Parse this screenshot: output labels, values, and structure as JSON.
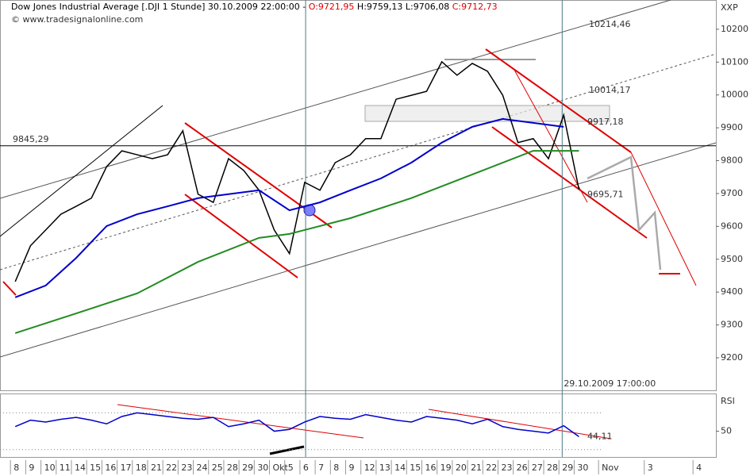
{
  "header": {
    "name": "Dow Jones Industrial Average [.DJI  1 Stunde] 30.10.2009 22:00:00 -",
    "open": "O:9721,95",
    "high_low": "H:9759,13 L:9706,08",
    "close": "C:9712,73",
    "source": "www.tradesignalonline.com",
    "axis_unit": "XXP"
  },
  "chart_data": [
    {
      "type": "line",
      "xlim": [
        -1,
        45.99
      ],
      "xticks": [
        {
          "value": 0,
          "label": "8"
        },
        {
          "value": 1,
          "label": "9"
        },
        {
          "value": 2,
          "label": "10"
        },
        {
          "value": 3,
          "label": "11"
        },
        {
          "value": 4,
          "label": "14"
        },
        {
          "value": 5,
          "label": "15"
        },
        {
          "value": 6,
          "label": "16"
        },
        {
          "value": 7,
          "label": "17"
        },
        {
          "value": 8,
          "label": "18"
        },
        {
          "value": 9,
          "label": "21"
        },
        {
          "value": 10,
          "label": "22"
        },
        {
          "value": 11,
          "label": "23"
        },
        {
          "value": 12,
          "label": "24"
        },
        {
          "value": 13,
          "label": "25"
        },
        {
          "value": 14,
          "label": "28"
        },
        {
          "value": 15,
          "label": "29"
        },
        {
          "value": 16,
          "label": "30"
        },
        {
          "value": 17,
          "label": "Okt"
        },
        {
          "value": 18,
          "label": "5"
        },
        {
          "value": 19,
          "label": "6"
        },
        {
          "value": 20,
          "label": "7"
        },
        {
          "value": 21,
          "label": "8"
        },
        {
          "value": 22,
          "label": "9"
        },
        {
          "value": 23,
          "label": "12"
        },
        {
          "value": 24,
          "label": "13"
        },
        {
          "value": 25,
          "label": "14"
        },
        {
          "value": 26,
          "label": "15"
        },
        {
          "value": 27,
          "label": "16"
        },
        {
          "value": 28,
          "label": "19"
        },
        {
          "value": 29,
          "label": "20"
        },
        {
          "value": 30,
          "label": "21"
        },
        {
          "value": 31,
          "label": "22"
        },
        {
          "value": 32,
          "label": "23"
        },
        {
          "value": 33,
          "label": "26"
        },
        {
          "value": 34,
          "label": "27"
        },
        {
          "value": 35,
          "label": "28"
        },
        {
          "value": 36,
          "label": "29"
        },
        {
          "value": 37,
          "label": "30"
        },
        {
          "value": 38.6,
          "label": "Nov"
        },
        {
          "value": 41.6,
          "label": "3"
        },
        {
          "value": 44.8,
          "label": "4"
        }
      ],
      "ylim": [
        9101,
        10289
      ],
      "yticks": [
        9200,
        9300,
        9400,
        9500,
        9600,
        9700,
        9800,
        9900,
        10000,
        10100,
        10200
      ],
      "series": [
        {
          "name": "Close",
          "color": "#000000",
          "x": [
            0,
            1,
            2,
            3,
            4,
            5,
            6,
            7,
            8,
            9,
            10,
            11,
            12,
            13,
            14,
            15,
            16,
            17,
            18,
            19,
            20,
            21,
            22,
            23,
            24,
            25,
            26,
            27,
            28,
            29,
            30,
            31,
            32,
            33,
            34,
            35,
            36,
            37
          ],
          "values": [
            9432,
            9541,
            9589,
            9637,
            9661,
            9686,
            9782,
            9830,
            9818,
            9806,
            9818,
            9891,
            9698,
            9673,
            9806,
            9770,
            9710,
            9589,
            9517,
            9734,
            9710,
            9794,
            9818,
            9867,
            9867,
            9987,
            9999,
            10011,
            10101,
            10060,
            10096,
            10072,
            9999,
            9855,
            9867,
            9806,
            9939,
            9712.73
          ]
        },
        {
          "name": "MA blue",
          "color": "#0000cc",
          "x": [
            0,
            2,
            4,
            6,
            8,
            10,
            12,
            14,
            16,
            18,
            20,
            22,
            24,
            26,
            28,
            30,
            32,
            34,
            36
          ],
          "values": [
            9384,
            9420,
            9504,
            9601,
            9637,
            9661,
            9686,
            9698,
            9710,
            9649,
            9673,
            9710,
            9746,
            9794,
            9855,
            9903,
            9927,
            9915,
            9903
          ]
        },
        {
          "name": "MA green",
          "color": "#228b22",
          "x": [
            0,
            4,
            8,
            12,
            16,
            18,
            22,
            26,
            30,
            34,
            37
          ],
          "values": [
            9275,
            9335,
            9396,
            9492,
            9565,
            9577,
            9625,
            9686,
            9758,
            9830,
            9830
          ]
        }
      ],
      "annotations": [
        {
          "value": 10214.46,
          "label": "10214,46",
          "color": "#555555"
        },
        {
          "value": 10014.17,
          "label": "10014,17",
          "color": "#555555"
        },
        {
          "value": 9917.18,
          "label": "9917,18",
          "color": "#dd0000"
        },
        {
          "value": 9695.71,
          "label": "9695,71",
          "color": "#dd0000"
        }
      ],
      "hline": {
        "value": 9845.29,
        "label": "9845,29"
      },
      "vlines": [
        {
          "x": 19.06
        },
        {
          "x": 35.9,
          "label": "29.10.2009 17:00:00"
        }
      ]
    },
    {
      "type": "line",
      "title": "RSI",
      "ylim": [
        22,
        91
      ],
      "yticks": [
        50
      ],
      "levels": [
        70,
        30
      ],
      "series": [
        {
          "name": "RSI",
          "color": "#0000cc",
          "x": [
            0,
            1,
            2,
            3,
            4,
            5,
            6,
            7,
            8,
            9,
            10,
            11,
            12,
            13,
            14,
            15,
            16,
            17,
            18,
            19,
            20,
            21,
            22,
            23,
            24,
            25,
            26,
            27,
            28,
            29,
            30,
            31,
            32,
            33,
            34,
            35,
            36,
            37
          ],
          "values": [
            55,
            62,
            60,
            63,
            65,
            62,
            58,
            66,
            70,
            68,
            66,
            64,
            63,
            65,
            55,
            58,
            62,
            50,
            52,
            60,
            66,
            64,
            63,
            68,
            65,
            62,
            60,
            66,
            64,
            62,
            58,
            63,
            55,
            52,
            50,
            48,
            56,
            44.11
          ]
        }
      ],
      "annotations": [
        {
          "value": 44.11,
          "label": "44,11",
          "color": "#dd0000"
        }
      ]
    }
  ]
}
